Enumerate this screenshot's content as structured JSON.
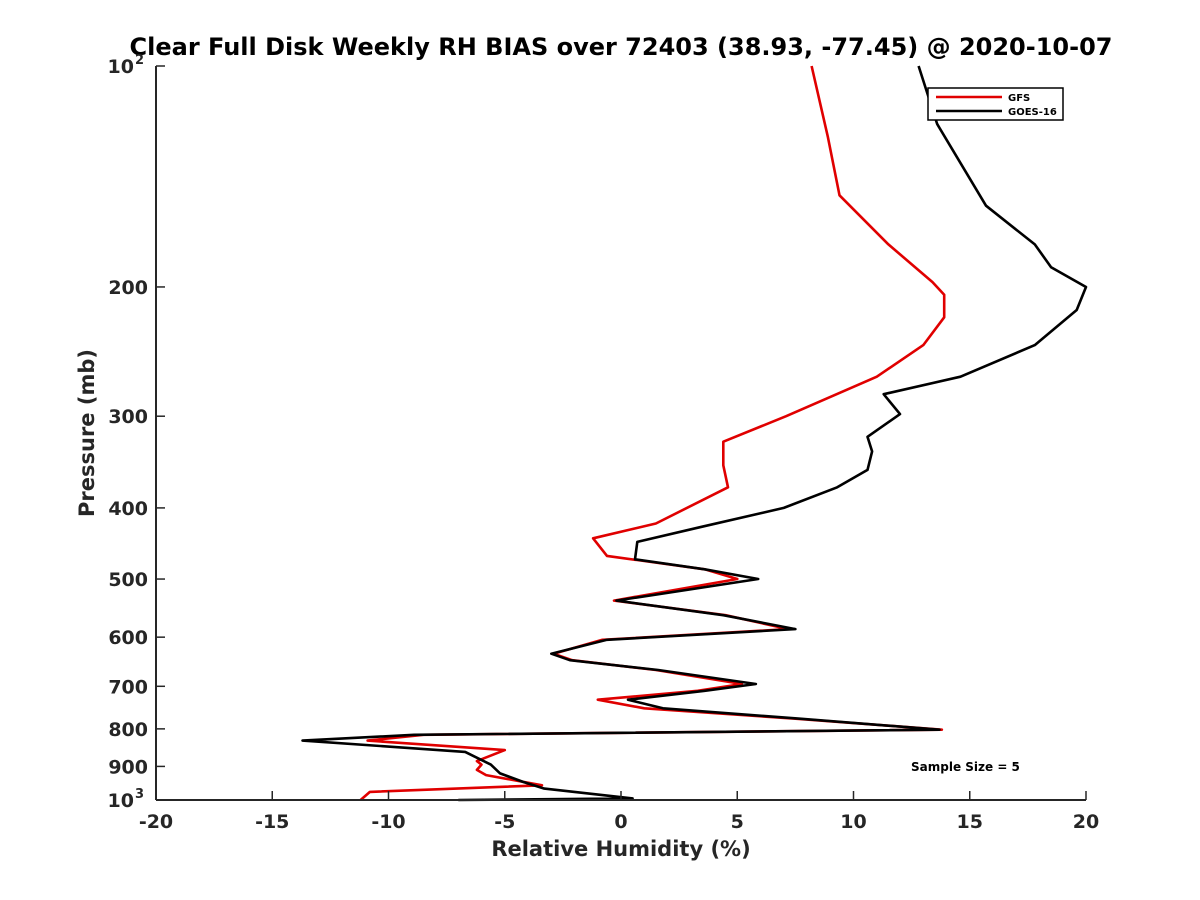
{
  "chart_data": {
    "type": "line",
    "title": "Clear Full Disk Weekly RH BIAS over 72403 (38.93, -77.45) @ 2020-10-07",
    "xlabel": "Relative Humidity (%)",
    "ylabel": "Pressure (mb)",
    "xlim": [
      -20,
      20
    ],
    "ylim": [
      100,
      1000
    ],
    "yscale": "log",
    "y_reversed": true,
    "x_ticks": [
      "-20",
      "-15",
      "-10",
      "-5",
      "0",
      "5",
      "10",
      "15",
      "20"
    ],
    "y_ticks": [
      {
        "value": 100,
        "base": "10",
        "exp": "2"
      },
      {
        "value": 200,
        "label": "200"
      },
      {
        "value": 300,
        "label": "300"
      },
      {
        "value": 400,
        "label": "400"
      },
      {
        "value": 500,
        "label": "500"
      },
      {
        "value": 600,
        "label": "600"
      },
      {
        "value": 700,
        "label": "700"
      },
      {
        "value": 800,
        "label": "800"
      },
      {
        "value": 900,
        "label": "900"
      },
      {
        "value": 1000,
        "base": "10",
        "exp": "3"
      }
    ],
    "grid": false,
    "legend_position": "top-right",
    "annotation": "Sample Size = 5",
    "series": [
      {
        "name": "GFS",
        "color": "#e00000",
        "points": [
          [
            8.2,
            100
          ],
          [
            8.9,
            125
          ],
          [
            9.4,
            150
          ],
          [
            11.5,
            175
          ],
          [
            13.4,
            197
          ],
          [
            13.9,
            205
          ],
          [
            13.9,
            220
          ],
          [
            13.0,
            240
          ],
          [
            11.0,
            265
          ],
          [
            7.1,
            300
          ],
          [
            4.4,
            325
          ],
          [
            4.4,
            350
          ],
          [
            4.6,
            375
          ],
          [
            1.5,
            420
          ],
          [
            -1.2,
            440
          ],
          [
            -0.6,
            465
          ],
          [
            3.6,
            485
          ],
          [
            5.0,
            500
          ],
          [
            -0.3,
            535
          ],
          [
            4.5,
            560
          ],
          [
            7.2,
            585
          ],
          [
            -0.8,
            605
          ],
          [
            -2.9,
            632
          ],
          [
            -2.1,
            645
          ],
          [
            1.5,
            665
          ],
          [
            5.2,
            695
          ],
          [
            3.3,
            710
          ],
          [
            -1.0,
            730
          ],
          [
            1.0,
            750
          ],
          [
            7.5,
            775
          ],
          [
            13.8,
            802
          ],
          [
            -8.5,
            815
          ],
          [
            -10.9,
            830
          ],
          [
            -5.0,
            855
          ],
          [
            -6.2,
            885
          ],
          [
            -6.0,
            895
          ],
          [
            -6.2,
            910
          ],
          [
            -5.8,
            925
          ],
          [
            -3.4,
            955
          ],
          [
            -10.8,
            975
          ],
          [
            -11.2,
            1000
          ]
        ]
      },
      {
        "name": "GOES-16",
        "color": "#000000",
        "points": [
          [
            12.8,
            100
          ],
          [
            13.6,
            120
          ],
          [
            15.7,
            155
          ],
          [
            17.8,
            175
          ],
          [
            18.5,
            188
          ],
          [
            20.0,
            200
          ],
          [
            19.6,
            215
          ],
          [
            17.8,
            240
          ],
          [
            14.6,
            265
          ],
          [
            11.3,
            280
          ],
          [
            12.0,
            298
          ],
          [
            10.6,
            320
          ],
          [
            10.8,
            335
          ],
          [
            10.6,
            355
          ],
          [
            9.3,
            375
          ],
          [
            7.0,
            400
          ],
          [
            3.4,
            425
          ],
          [
            0.7,
            445
          ],
          [
            0.6,
            470
          ],
          [
            3.6,
            485
          ],
          [
            5.9,
            500
          ],
          [
            -0.2,
            535
          ],
          [
            4.4,
            560
          ],
          [
            7.5,
            585
          ],
          [
            -0.6,
            605
          ],
          [
            -3.0,
            632
          ],
          [
            -2.2,
            645
          ],
          [
            1.6,
            665
          ],
          [
            5.8,
            695
          ],
          [
            3.6,
            710
          ],
          [
            0.3,
            730
          ],
          [
            1.8,
            750
          ],
          [
            7.7,
            775
          ],
          [
            13.7,
            802
          ],
          [
            -8.9,
            815
          ],
          [
            -13.7,
            830
          ],
          [
            -6.7,
            860
          ],
          [
            -5.6,
            895
          ],
          [
            -5.2,
            920
          ],
          [
            -4.2,
            945
          ],
          [
            -3.3,
            965
          ],
          [
            0.5,
            995
          ],
          [
            -7.0,
            1000
          ]
        ]
      }
    ]
  }
}
